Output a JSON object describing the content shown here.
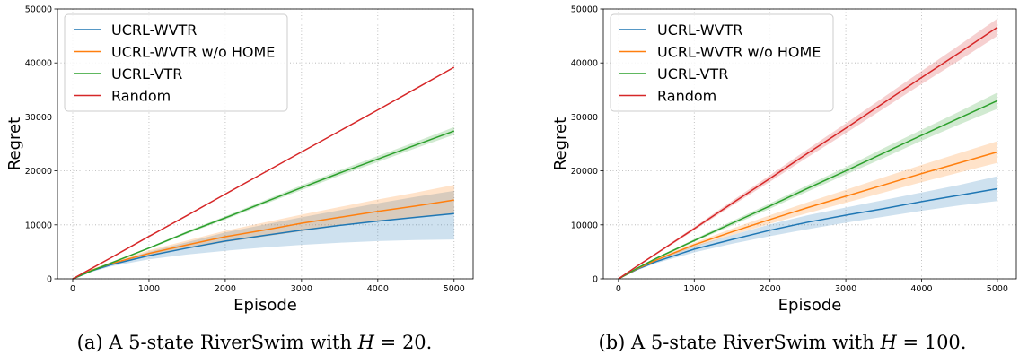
{
  "chart_data": [
    {
      "type": "line",
      "xlabel": "Episode",
      "ylabel": "Regret",
      "xlim": [
        -200,
        5250
      ],
      "ylim": [
        0,
        50000
      ],
      "xticks": [
        0,
        1000,
        2000,
        3000,
        4000,
        5000
      ],
      "yticks": [
        0,
        10000,
        20000,
        30000,
        40000,
        50000
      ],
      "grid": true,
      "legend_position": "top-left",
      "x": [
        0,
        250,
        500,
        1000,
        1500,
        2000,
        2500,
        3000,
        3500,
        4000,
        4500,
        5000
      ],
      "series": [
        {
          "name": "UCRL-WVTR",
          "color": "#1f77b4",
          "values": [
            0,
            1500,
            2600,
            4300,
            5700,
            7000,
            8000,
            9000,
            9900,
            10700,
            11400,
            12100
          ],
          "lower": [
            0,
            1300,
            2300,
            3600,
            4500,
            5200,
            5800,
            6300,
            6700,
            7000,
            7200,
            7300
          ],
          "upper": [
            0,
            1700,
            2900,
            5000,
            6800,
            8600,
            10000,
            11400,
            12700,
            14000,
            15200,
            16300
          ]
        },
        {
          "name": "UCRL-WVTR w/o HOME",
          "color": "#ff7f0e",
          "values": [
            0,
            1600,
            2800,
            4700,
            6300,
            7800,
            9000,
            10300,
            11400,
            12500,
            13500,
            14600
          ],
          "lower": [
            0,
            1400,
            2500,
            4200,
            5600,
            6800,
            7800,
            8800,
            9800,
            10600,
            11400,
            12200
          ],
          "upper": [
            0,
            1800,
            3100,
            5300,
            7100,
            8900,
            10400,
            11900,
            13300,
            14700,
            16000,
            17400
          ]
        },
        {
          "name": "UCRL-VTR",
          "color": "#2ca02c",
          "values": [
            0,
            1500,
            2900,
            5700,
            8600,
            11300,
            14100,
            16900,
            19600,
            22200,
            24800,
            27400
          ],
          "lower": [
            0,
            1450,
            2800,
            5550,
            8350,
            11000,
            13750,
            16450,
            19100,
            21650,
            24200,
            26700
          ],
          "upper": [
            0,
            1550,
            3000,
            5850,
            8850,
            11600,
            14450,
            17350,
            20100,
            22750,
            25400,
            28100
          ]
        },
        {
          "name": "Random",
          "color": "#d62728",
          "values": [
            0,
            1950,
            3900,
            7850,
            11750,
            15700,
            19600,
            23500,
            27400,
            31300,
            35250,
            39200
          ],
          "lower": [
            0,
            1950,
            3900,
            7850,
            11750,
            15700,
            19600,
            23500,
            27400,
            31300,
            35250,
            39200
          ],
          "upper": [
            0,
            1950,
            3900,
            7850,
            11750,
            15700,
            19600,
            23500,
            27400,
            31300,
            35250,
            39200
          ]
        }
      ]
    },
    {
      "type": "line",
      "xlabel": "Episode",
      "ylabel": "Regret",
      "xlim": [
        -200,
        5250
      ],
      "ylim": [
        0,
        50000
      ],
      "xticks": [
        0,
        1000,
        2000,
        3000,
        4000,
        5000
      ],
      "yticks": [
        0,
        10000,
        20000,
        30000,
        40000,
        50000
      ],
      "grid": true,
      "legend_position": "top-left",
      "x": [
        0,
        250,
        500,
        1000,
        1500,
        2000,
        2500,
        3000,
        3500,
        4000,
        4500,
        5000
      ],
      "series": [
        {
          "name": "UCRL-WVTR",
          "color": "#1f77b4",
          "values": [
            0,
            1800,
            3200,
            5500,
            7300,
            9000,
            10500,
            11800,
            13000,
            14300,
            15500,
            16700
          ],
          "lower": [
            0,
            1600,
            2900,
            4900,
            6500,
            7900,
            9200,
            10400,
            11500,
            12600,
            13600,
            14400
          ],
          "upper": [
            0,
            2000,
            3500,
            6100,
            8100,
            10100,
            11800,
            13200,
            14600,
            16000,
            17400,
            19000
          ]
        },
        {
          "name": "UCRL-WVTR w/o HOME",
          "color": "#ff7f0e",
          "values": [
            0,
            1900,
            3500,
            6300,
            8700,
            11000,
            13200,
            15300,
            17400,
            19500,
            21500,
            23500
          ],
          "lower": [
            0,
            1750,
            3250,
            5900,
            8100,
            10200,
            12200,
            14100,
            16000,
            17900,
            19700,
            21500
          ],
          "upper": [
            0,
            2050,
            3750,
            6700,
            9300,
            11800,
            14200,
            16500,
            18800,
            21100,
            23300,
            25500
          ]
        },
        {
          "name": "UCRL-VTR",
          "color": "#2ca02c",
          "values": [
            0,
            2000,
            3800,
            7100,
            10300,
            13500,
            16800,
            20000,
            23300,
            26600,
            29800,
            33000
          ],
          "lower": [
            0,
            1900,
            3650,
            6850,
            9900,
            13000,
            16200,
            19300,
            22400,
            25600,
            28600,
            31500
          ],
          "upper": [
            0,
            2100,
            3950,
            7350,
            10700,
            14000,
            17400,
            20700,
            24200,
            27600,
            31000,
            34500
          ]
        },
        {
          "name": "Random",
          "color": "#d62728",
          "values": [
            0,
            2400,
            4700,
            9300,
            14000,
            18600,
            23300,
            27900,
            32600,
            37300,
            41900,
            46600
          ],
          "lower": [
            0,
            2300,
            4550,
            9000,
            13550,
            18000,
            22550,
            27000,
            31550,
            36100,
            40500,
            45000
          ],
          "upper": [
            0,
            2500,
            4850,
            9600,
            14450,
            19200,
            24050,
            28800,
            33650,
            38500,
            43300,
            48200
          ]
        }
      ]
    }
  ],
  "captions": [
    {
      "label": "(a) A 5-state RiverSwim with ",
      "var": "H",
      "rest": " = 20."
    },
    {
      "label": "(b) A 5-state RiverSwim with ",
      "var": "H",
      "rest": " = 100."
    }
  ]
}
